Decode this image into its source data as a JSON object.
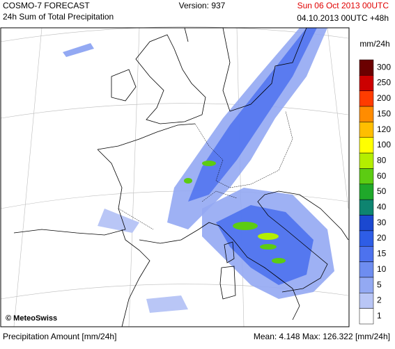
{
  "header": {
    "title": "COSMO-7 FORECAST",
    "subtitle": "24h Sum of Total Precipitation",
    "version": "Version: 937",
    "valid_time": "Sun 06 Oct 2013 00UTC",
    "run": "04.10.2013 00UTC +48h"
  },
  "legend": {
    "unit": "mm/24h",
    "items": [
      {
        "label": "300",
        "color": "#6b0000"
      },
      {
        "label": "250",
        "color": "#cc0000"
      },
      {
        "label": "200",
        "color": "#ff3c00"
      },
      {
        "label": "150",
        "color": "#ff8c00"
      },
      {
        "label": "120",
        "color": "#ffbe00"
      },
      {
        "label": "100",
        "color": "#ffff00"
      },
      {
        "label": "80",
        "color": "#b4ee00"
      },
      {
        "label": "60",
        "color": "#5ccc12"
      },
      {
        "label": "50",
        "color": "#1fa82a"
      },
      {
        "label": "40",
        "color": "#0e8470"
      },
      {
        "label": "30",
        "color": "#1b48d0"
      },
      {
        "label": "20",
        "color": "#2e5de6"
      },
      {
        "label": "15",
        "color": "#4d72ee"
      },
      {
        "label": "10",
        "color": "#6e8df0"
      },
      {
        "label": "5",
        "color": "#93a9f3"
      },
      {
        "label": "2",
        "color": "#b9c6f6"
      },
      {
        "label": "1",
        "color": "#ffffff"
      }
    ]
  },
  "map": {
    "credit": "© MeteoSwiss"
  },
  "footer": {
    "left": "Precipitation Amount [mm/24h]",
    "right": "Mean:  4.148 Max: 126.322 [mm/24h]"
  }
}
